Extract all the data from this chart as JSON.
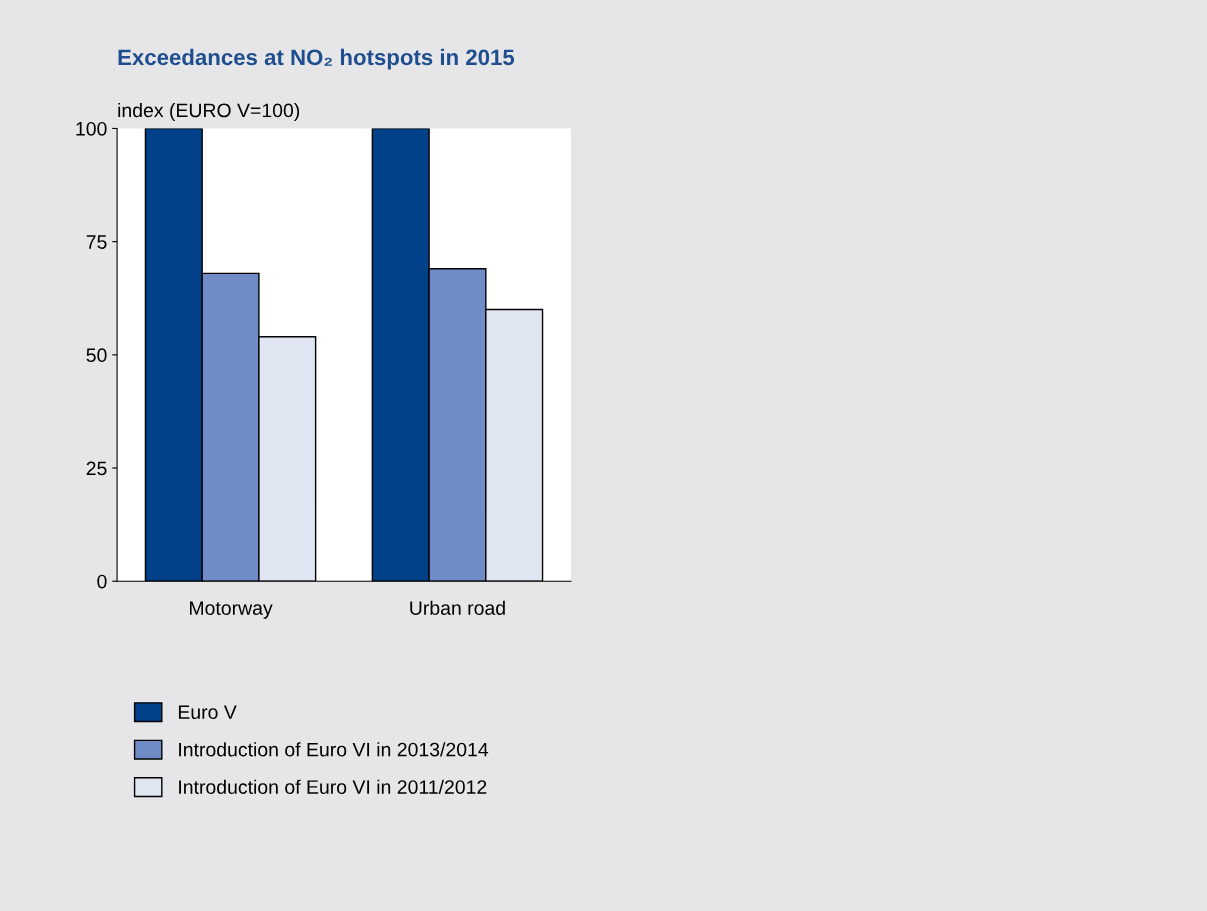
{
  "chart_data": {
    "type": "bar",
    "title": "Exceedances at NO₂ hotspots in 2015",
    "ylabel": "index (EURO V=100)",
    "categories": [
      "Motorway",
      "Urban road"
    ],
    "series": [
      {
        "name": "Euro V",
        "color": "#00418a",
        "values": [
          100,
          100
        ]
      },
      {
        "name": "Introduction of Euro VI in 2013/2014",
        "color": "#6f8cc6",
        "values": [
          68,
          69
        ]
      },
      {
        "name": "Introduction of Euro VI in 2011/2012",
        "color": "#e0e5f2",
        "values": [
          54,
          60
        ]
      }
    ],
    "ylim": [
      0,
      100
    ],
    "yticks": [
      0,
      25,
      50,
      75,
      100
    ],
    "grid": false,
    "legend": "bottom left"
  }
}
